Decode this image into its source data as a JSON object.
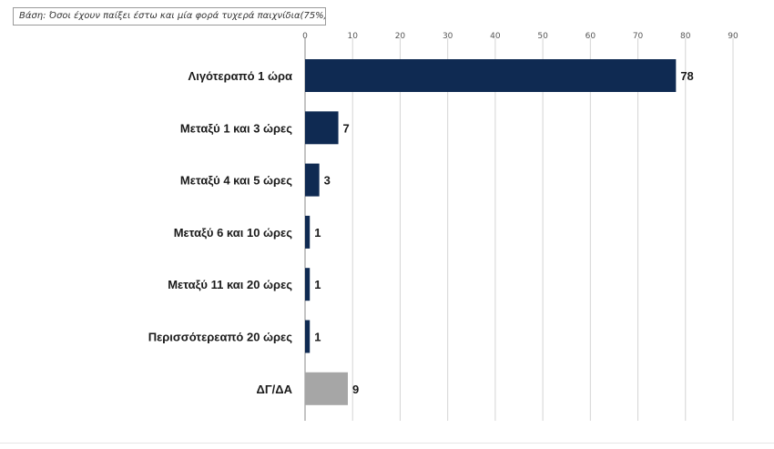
{
  "base_note": "Βάση: Όσοι έχουν παίξει έστω και μία φορά τυχερά παιχνίδια(75%)",
  "colors": {
    "primary_bar": "#0f2a52",
    "highlight_bar": "#a6a6a6",
    "grid": "#d4d4d4"
  },
  "chart_data": {
    "type": "bar",
    "orientation": "horizontal",
    "categories": [
      "Λιγότεραπό 1  ώρα",
      "Μεταξύ 1 και 3  ώρες",
      "Μεταξύ 4  και 5  ώρες",
      "Μεταξύ  6  και 10 ώρες",
      "Μεταξύ 11 και 20  ώρες",
      "Περισσότερεαπό  20  ώρες",
      "ΔΓ/ΔΑ"
    ],
    "values": [
      78,
      7,
      3,
      1,
      1,
      1,
      9
    ],
    "bar_colors": [
      "#0f2a52",
      "#0f2a52",
      "#0f2a52",
      "#0f2a52",
      "#0f2a52",
      "#0f2a52",
      "#a6a6a6"
    ],
    "xlim": [
      0,
      90
    ],
    "xticks": [
      0,
      10,
      20,
      30,
      40,
      50,
      60,
      70,
      80,
      90
    ],
    "x_axis_position": "top",
    "grid": true,
    "data_labels": true,
    "legend": "none",
    "title": "",
    "xlabel": "",
    "ylabel": ""
  }
}
